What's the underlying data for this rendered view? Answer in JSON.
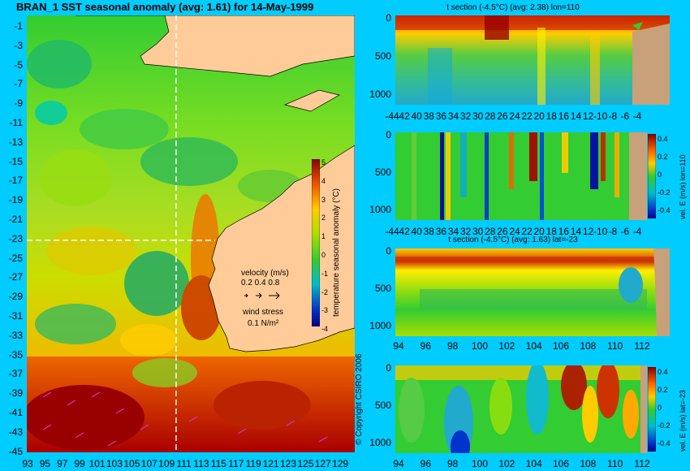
{
  "colors": {
    "background": "#00ccff",
    "land": "#ffcc99",
    "land_section": "#c8a07a",
    "vector": "#cc33cc",
    "grid": "#ffffff"
  },
  "chart_data": [
    {
      "type": "heatmap",
      "title": "BRAN_1 SST seasonal anomaly  (avg: 1.61) for 14-May-1999",
      "x_ticks": [
        "93",
        "95",
        "97",
        "99",
        "101",
        "103",
        "105",
        "107",
        "109",
        "111",
        "113",
        "115",
        "117",
        "119",
        "121",
        "123",
        "125",
        "127",
        "129"
      ],
      "y_ticks": [
        "-1",
        "-3",
        "-5",
        "-7",
        "-9",
        "-11",
        "-13",
        "-15",
        "-17",
        "-19",
        "-21",
        "-23",
        "-25",
        "-27",
        "-29",
        "-31",
        "-33",
        "-35",
        "-37",
        "-39",
        "-41",
        "-43",
        "-45"
      ],
      "xlim": [
        92.5,
        130
      ],
      "ylim": [
        -45,
        0
      ],
      "colorbar": {
        "label": "temperature seasonal anomaly (°C)",
        "ticks": [
          "5",
          "4",
          "3",
          "2",
          "1",
          "0",
          "-1",
          "-2",
          "-3",
          "-4"
        ],
        "range": [
          -4,
          5
        ]
      },
      "section_lines": {
        "lon": 110,
        "lat": -23
      },
      "legend": {
        "velocity_label": "velocity (m/s)",
        "velocity_scale": "0.2 0.4 0.8",
        "wind_label": "wind stress",
        "wind_scale": "0.1 N/m²"
      },
      "copyright": "© Copyright CSIRO 2006"
    },
    {
      "type": "heatmap",
      "title": "t section (-4.5°C) (avg: 2.38) lon=110",
      "x_ticks": [
        "-44",
        "42",
        "40",
        "38",
        "36",
        "34",
        "32",
        "30",
        "28",
        "26",
        "24",
        "22",
        "20",
        "18",
        "16",
        "14",
        "12",
        "-10",
        "-8",
        "-6",
        "-4"
      ],
      "y_ticks": [
        "0",
        "500",
        "1000"
      ]
    },
    {
      "type": "heatmap",
      "title": "",
      "x_ticks": [
        "-44",
        "42",
        "40",
        "38",
        "36",
        "34",
        "32",
        "30",
        "28",
        "26",
        "24",
        "22",
        "20",
        "18",
        "16",
        "14",
        "12",
        "-10",
        "-8",
        "-6",
        "-4"
      ],
      "y_ticks": [
        "0",
        "500",
        "1000"
      ],
      "colorbar": {
        "label": "vel. E (m/s) lon=110",
        "ticks": [
          "0.4",
          "0.2",
          "0",
          "-0.2",
          "-0.4"
        ]
      }
    },
    {
      "type": "heatmap",
      "title": "t section (-4.5°C) (avg: 1.63) lat=-23",
      "x_ticks": [
        "94",
        "96",
        "98",
        "100",
        "102",
        "104",
        "106",
        "108",
        "110",
        "112"
      ],
      "y_ticks": [
        "0",
        "500",
        "1000"
      ]
    },
    {
      "type": "heatmap",
      "title": "",
      "x_ticks": [
        "94",
        "96",
        "98",
        "100",
        "102",
        "104",
        "106",
        "108",
        "110",
        "112"
      ],
      "y_ticks": [
        "0",
        "500",
        "1000"
      ],
      "colorbar": {
        "label": "vel. E (m/s) lat=-23",
        "ticks": [
          "0.4",
          "0.2",
          "0",
          "-0.2",
          "-0.4"
        ]
      }
    }
  ]
}
